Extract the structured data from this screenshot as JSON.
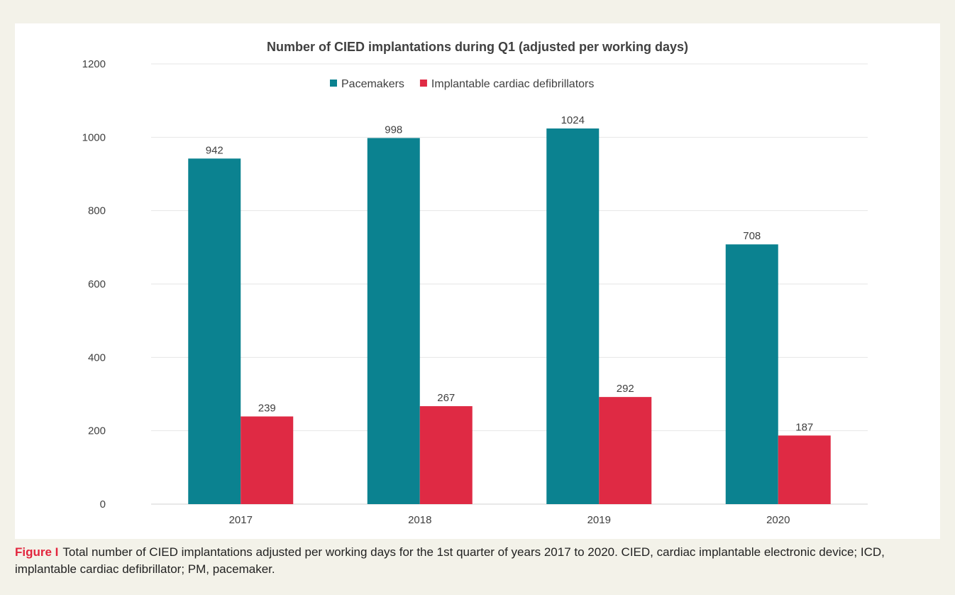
{
  "colors": {
    "pacemakers": "#0b8290",
    "icd": "#df2a44",
    "caption_label": "#e2253d",
    "grid": "#e6e6e6",
    "text": "#404040"
  },
  "caption": {
    "label": "Figure I",
    "text": "Total number of CIED implantations adjusted per working days for the 1st quarter of years 2017 to 2020. CIED, cardiac implantable electronic device; ICD, implantable cardiac defibrillator; PM, pacemaker."
  },
  "chart_data": {
    "type": "bar",
    "title": "Number of CIED implantations during Q1 (adjusted per working days)",
    "xlabel": "",
    "ylabel": "",
    "categories": [
      "2017",
      "2018",
      "2019",
      "2020"
    ],
    "series": [
      {
        "name": "Pacemakers",
        "values": [
          942,
          998,
          1024,
          708
        ],
        "color": "#0b8290"
      },
      {
        "name": "Implantable cardiac defibrillators",
        "values": [
          239,
          267,
          292,
          187
        ],
        "color": "#df2a44"
      }
    ],
    "ylim": [
      0,
      1200
    ],
    "yticks": [
      0,
      200,
      400,
      600,
      800,
      1000,
      1200
    ],
    "grid": true,
    "legend_position": "top-center",
    "data_labels": true
  }
}
